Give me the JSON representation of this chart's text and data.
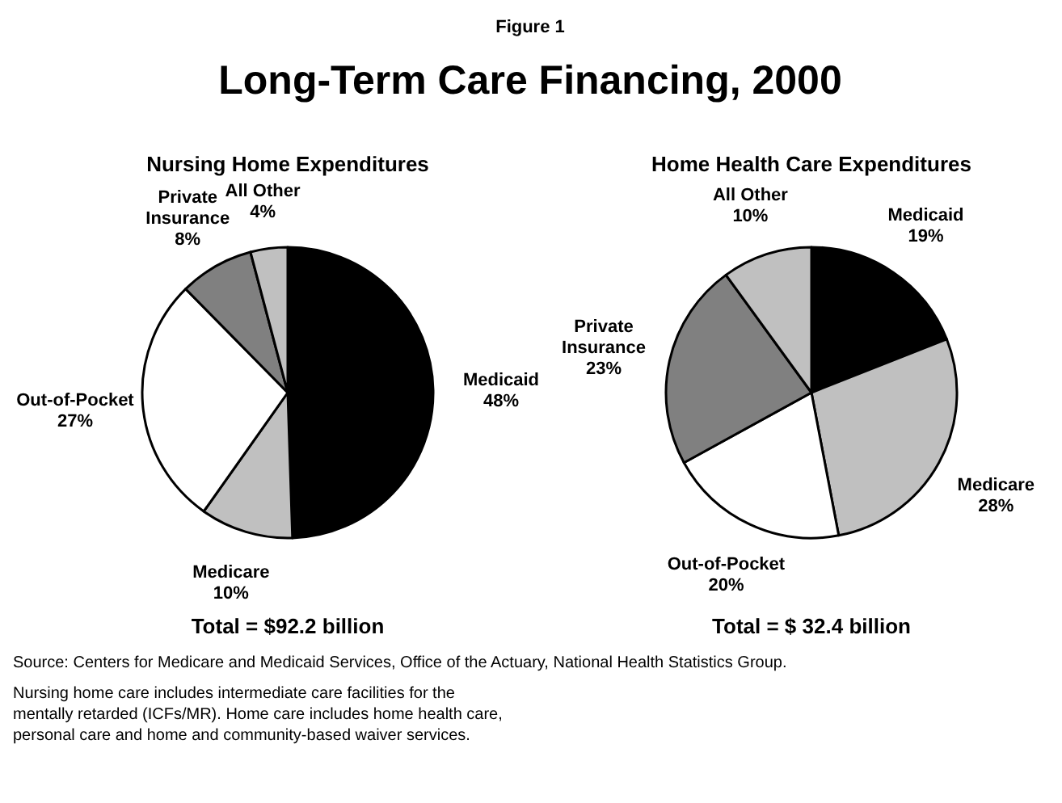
{
  "chart_data": [
    {
      "type": "other",
      "subtitle": "Figure 1",
      "title": "Long-Term Care Financing, 2000",
      "annotations": [
        "Source: Centers for Medicare and Medicaid Services, Office of the Actuary, National Health Statistics Group.",
        "Nursing home care includes intermediate care facilities for the mentally retarded (ICFs/MR).  Home care includes home health care, personal care and home and community-based waiver services."
      ]
    },
    {
      "type": "pie",
      "title": "Nursing Home Expenditures",
      "categories": [
        "Medicaid",
        "Medicare",
        "Out-of-Pocket",
        "Private Insurance",
        "All Other"
      ],
      "values": [
        48,
        10,
        27,
        8,
        4
      ],
      "value_labels": [
        "48%",
        "10%",
        "27%",
        "8%",
        "4%"
      ],
      "colors": [
        "#000000",
        "#c0c0c0",
        "#ffffff",
        "#808080",
        "#c0c0c0"
      ],
      "annotations": [
        "Total = $92.2 billion"
      ]
    },
    {
      "type": "pie",
      "title": "Home Health Care Expenditures",
      "categories": [
        "Medicaid",
        "Medicare",
        "Out-of-Pocket",
        "Private Insurance",
        "All Other"
      ],
      "values": [
        19,
        28,
        20,
        23,
        10
      ],
      "value_labels": [
        "19%",
        "28%",
        "20%",
        "23%",
        "10%"
      ],
      "colors": [
        "#000000",
        "#c0c0c0",
        "#ffffff",
        "#808080",
        "#c0c0c0"
      ],
      "annotations": [
        "Total = $ 32.4 billion"
      ]
    }
  ]
}
